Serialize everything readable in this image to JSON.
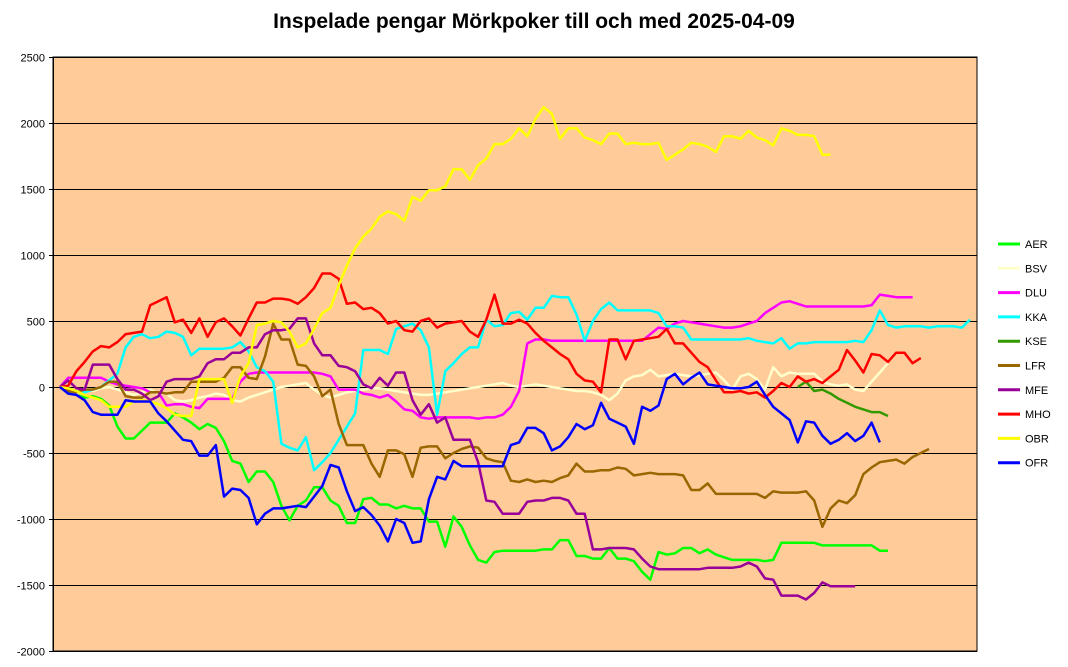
{
  "chart_data": {
    "type": "line",
    "title": "Inspelade pengar Mörkpoker till och med 2025-04-09",
    "ylim": [
      -2000,
      2500
    ],
    "yticks": [
      2500,
      2000,
      1500,
      1000,
      500,
      0,
      -500,
      -1000,
      -1500,
      -2000
    ],
    "grid": true,
    "legend_position": "right",
    "plot_background": "#FFCC99",
    "series": [
      {
        "name": "AER",
        "color": "#00FF00",
        "start": 0,
        "values": [
          0,
          -30,
          -60,
          -80,
          -70,
          -90,
          -140,
          -300,
          -390,
          -390,
          -330,
          -270,
          -270,
          -270,
          -200,
          -230,
          -270,
          -320,
          -280,
          -310,
          -410,
          -560,
          -580,
          -720,
          -640,
          -640,
          -720,
          -900,
          -1010,
          -900,
          -860,
          -760,
          -760,
          -860,
          -900,
          -1030,
          -1030,
          -850,
          -840,
          -890,
          -890,
          -920,
          -900,
          -920,
          -920,
          -1020,
          -1020,
          -1210,
          -980,
          -1060,
          -1200,
          -1310,
          -1330,
          -1250,
          -1240,
          -1240,
          -1240,
          -1240,
          -1240,
          -1230,
          -1230,
          -1160,
          -1160,
          -1280,
          -1280,
          -1300,
          -1300,
          -1220,
          -1300,
          -1300,
          -1320,
          -1400,
          -1460,
          -1250,
          -1270,
          -1260,
          -1220,
          -1220,
          -1260,
          -1230,
          -1270,
          -1290,
          -1310,
          -1310,
          -1310,
          -1310,
          -1320,
          -1310,
          -1180,
          -1180,
          -1180,
          -1180,
          -1180,
          -1200,
          -1200,
          -1200,
          -1200,
          -1200,
          -1200,
          -1200,
          -1240,
          -1240
        ]
      },
      {
        "name": "BSV",
        "color": "#FFFFCC",
        "start": 0,
        "values": [
          0,
          -20,
          -50,
          -10,
          -30,
          -10,
          0,
          -20,
          -40,
          -60,
          -40,
          -20,
          -50,
          -50,
          -100,
          -110,
          -100,
          -80,
          -70,
          -50,
          -60,
          -100,
          -110,
          -80,
          -60,
          -40,
          -20,
          0,
          10,
          20,
          30,
          -20,
          -60,
          -80,
          -60,
          -40,
          -30,
          -20,
          -10,
          -10,
          -20,
          -30,
          -40,
          -50,
          -60,
          -60,
          -50,
          -40,
          -30,
          -20,
          -10,
          0,
          10,
          20,
          30,
          10,
          0,
          10,
          20,
          10,
          0,
          -10,
          -20,
          -30,
          -30,
          -40,
          -60,
          -100,
          -50,
          50,
          80,
          90,
          130,
          80,
          90,
          100,
          90,
          80,
          90,
          100,
          110,
          50,
          -20,
          80,
          100,
          60,
          -20,
          150,
          80,
          110,
          100,
          100,
          100,
          40,
          20,
          10,
          20,
          -20,
          -30,
          40,
          110,
          180
        ]
      },
      {
        "name": "DLU",
        "color": "#FF00FF",
        "start": 0,
        "values": [
          0,
          70,
          70,
          70,
          70,
          70,
          40,
          20,
          10,
          0,
          -10,
          -40,
          -40,
          -140,
          -130,
          -130,
          -150,
          -160,
          -90,
          -90,
          -90,
          -90,
          40,
          100,
          110,
          110,
          110,
          110,
          110,
          110,
          110,
          110,
          100,
          80,
          -20,
          -20,
          -20,
          -50,
          -60,
          -80,
          -60,
          -110,
          -170,
          -180,
          -230,
          -240,
          -230,
          -230,
          -230,
          -230,
          -230,
          -240,
          -230,
          -230,
          -210,
          -150,
          -30,
          330,
          360,
          360,
          350,
          350,
          350,
          350,
          350,
          350,
          350,
          350,
          350,
          350,
          350,
          350,
          400,
          450,
          440,
          480,
          500,
          490,
          480,
          470,
          460,
          450,
          450,
          460,
          480,
          500,
          560,
          600,
          640,
          650,
          630,
          610,
          610,
          610,
          610,
          610,
          610,
          610,
          610,
          620,
          700,
          690,
          680,
          680,
          680
        ]
      },
      {
        "name": "KKA",
        "color": "#00FFFF",
        "start": 0,
        "values": [
          0,
          -10,
          -30,
          -40,
          -20,
          0,
          50,
          100,
          300,
          380,
          400,
          370,
          380,
          420,
          410,
          380,
          240,
          290,
          290,
          290,
          290,
          300,
          340,
          270,
          150,
          120,
          40,
          -430,
          -460,
          -480,
          -380,
          -630,
          -570,
          -500,
          -400,
          -300,
          -200,
          280,
          280,
          280,
          250,
          440,
          460,
          480,
          430,
          300,
          -210,
          120,
          180,
          250,
          300,
          300,
          510,
          460,
          470,
          560,
          570,
          510,
          600,
          600,
          690,
          680,
          680,
          550,
          350,
          500,
          590,
          640,
          580,
          580,
          580,
          580,
          580,
          560,
          460,
          460,
          450,
          360,
          360,
          360,
          360,
          360,
          360,
          360,
          370,
          350,
          340,
          330,
          370,
          290,
          330,
          330,
          340,
          340,
          340,
          340,
          340,
          350,
          340,
          430,
          580,
          470,
          450,
          460,
          460,
          460,
          450,
          460,
          460,
          460,
          450,
          510
        ]
      },
      {
        "name": "KSE",
        "color": "#339900",
        "start": 90,
        "values": [
          0,
          40,
          -30,
          -20,
          -50,
          -90,
          -120,
          -150,
          -170,
          -190,
          -190,
          -220
        ]
      },
      {
        "name": "LFR",
        "color": "#996600",
        "start": 0,
        "values": [
          0,
          -30,
          -40,
          -20,
          -20,
          0,
          40,
          40,
          -70,
          -80,
          -80,
          -40,
          -40,
          -50,
          -40,
          -40,
          40,
          40,
          40,
          40,
          70,
          150,
          150,
          70,
          60,
          230,
          480,
          360,
          360,
          170,
          160,
          80,
          -70,
          -20,
          -280,
          -440,
          -440,
          -440,
          -580,
          -680,
          -480,
          -480,
          -510,
          -680,
          -460,
          -450,
          -450,
          -540,
          -500,
          -470,
          -450,
          -460,
          -540,
          -560,
          -570,
          -710,
          -720,
          -700,
          -720,
          -710,
          -720,
          -690,
          -670,
          -580,
          -640,
          -640,
          -630,
          -630,
          -610,
          -620,
          -670,
          -660,
          -650,
          -660,
          -660,
          -660,
          -670,
          -780,
          -780,
          -730,
          -810,
          -810,
          -810,
          -810,
          -810,
          -810,
          -840,
          -790,
          -800,
          -800,
          -800,
          -790,
          -860,
          -1060,
          -920,
          -860,
          -880,
          -820,
          -660,
          -610,
          -570,
          -560,
          -550,
          -580,
          -530,
          -500,
          -470
        ]
      },
      {
        "name": "MFE",
        "color": "#990099",
        "start": 0,
        "values": [
          0,
          50,
          -10,
          -20,
          170,
          170,
          170,
          60,
          -20,
          -20,
          -50,
          -100,
          -70,
          40,
          60,
          60,
          60,
          80,
          180,
          210,
          210,
          260,
          260,
          300,
          300,
          400,
          430,
          430,
          440,
          520,
          520,
          330,
          240,
          240,
          160,
          150,
          120,
          20,
          -10,
          70,
          10,
          110,
          110,
          -100,
          -210,
          -130,
          -270,
          -230,
          -400,
          -400,
          -400,
          -570,
          -860,
          -870,
          -960,
          -960,
          -960,
          -870,
          -860,
          -860,
          -840,
          -840,
          -860,
          -960,
          -960,
          -1230,
          -1230,
          -1220,
          -1220,
          -1220,
          -1230,
          -1300,
          -1360,
          -1380,
          -1380,
          -1380,
          -1380,
          -1380,
          -1380,
          -1370,
          -1370,
          -1370,
          -1370,
          -1360,
          -1330,
          -1360,
          -1450,
          -1460,
          -1580,
          -1580,
          -1580,
          -1610,
          -1560,
          -1480,
          -1510,
          -1510,
          -1510,
          -1510
        ]
      },
      {
        "name": "MHO",
        "color": "#FF0000",
        "start": 0,
        "values": [
          0,
          10,
          120,
          190,
          270,
          310,
          300,
          340,
          400,
          410,
          420,
          620,
          650,
          680,
          490,
          510,
          410,
          520,
          380,
          490,
          520,
          460,
          390,
          520,
          640,
          640,
          670,
          670,
          660,
          630,
          680,
          750,
          860,
          860,
          820,
          630,
          640,
          590,
          600,
          560,
          480,
          500,
          430,
          420,
          500,
          520,
          450,
          480,
          490,
          500,
          420,
          380,
          510,
          700,
          480,
          480,
          510,
          480,
          410,
          350,
          300,
          250,
          210,
          100,
          50,
          40,
          -40,
          360,
          360,
          210,
          350,
          360,
          370,
          380,
          440,
          330,
          330,
          260,
          190,
          150,
          50,
          -40,
          -40,
          -30,
          -50,
          -40,
          -80,
          -30,
          30,
          0,
          80,
          40,
          60,
          30,
          80,
          130,
          280,
          200,
          110,
          250,
          240,
          190,
          260,
          260,
          180,
          220
        ]
      },
      {
        "name": "OBR",
        "color": "#FFFF00",
        "start": 0,
        "values": [
          0,
          -10,
          -30,
          -60,
          -80,
          -100,
          -150,
          -150,
          -150,
          -110,
          -100,
          -110,
          -130,
          -160,
          -210,
          -220,
          -220,
          60,
          60,
          60,
          60,
          -120,
          80,
          180,
          470,
          480,
          500,
          490,
          420,
          300,
          330,
          440,
          560,
          600,
          770,
          920,
          1050,
          1140,
          1200,
          1290,
          1330,
          1310,
          1260,
          1440,
          1410,
          1490,
          1490,
          1520,
          1650,
          1650,
          1570,
          1680,
          1730,
          1840,
          1840,
          1880,
          1960,
          1900,
          2030,
          2120,
          2070,
          1880,
          1960,
          1960,
          1890,
          1870,
          1840,
          1920,
          1920,
          1840,
          1850,
          1840,
          1840,
          1850,
          1720,
          1760,
          1800,
          1850,
          1840,
          1820,
          1780,
          1900,
          1900,
          1880,
          1940,
          1890,
          1870,
          1830,
          1960,
          1940,
          1910,
          1910,
          1900,
          1760,
          1760
        ]
      },
      {
        "name": "OFR",
        "color": "#0000FF",
        "start": 0,
        "values": [
          0,
          -50,
          -60,
          -100,
          -190,
          -210,
          -210,
          -210,
          -100,
          -110,
          -110,
          -110,
          -200,
          -260,
          -330,
          -400,
          -410,
          -520,
          -520,
          -440,
          -830,
          -770,
          -780,
          -840,
          -1040,
          -960,
          -920,
          -920,
          -910,
          -900,
          -910,
          -830,
          -750,
          -590,
          -610,
          -790,
          -940,
          -910,
          -970,
          -1050,
          -1170,
          -1000,
          -1030,
          -1180,
          -1170,
          -850,
          -680,
          -700,
          -560,
          -600,
          -600,
          -600,
          -600,
          -600,
          -600,
          -440,
          -420,
          -310,
          -310,
          -350,
          -480,
          -450,
          -380,
          -280,
          -320,
          -290,
          -120,
          -240,
          -270,
          -300,
          -430,
          -150,
          -180,
          -140,
          60,
          100,
          20,
          70,
          110,
          20,
          10,
          0,
          -10,
          -10,
          0,
          40,
          -60,
          -150,
          -200,
          -250,
          -420,
          -260,
          -270,
          -370,
          -430,
          -400,
          -350,
          -410,
          -370,
          -270,
          -420
        ]
      }
    ]
  }
}
